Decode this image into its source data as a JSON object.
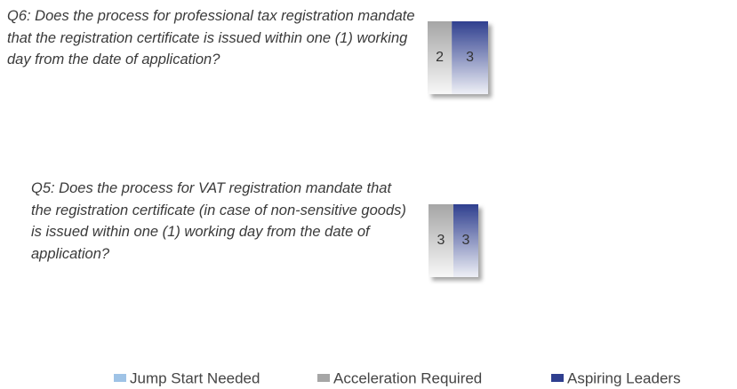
{
  "chart_data": {
    "type": "stacked-bar",
    "categories": [
      "Q6: Does the process for professional tax registration mandate that the registration certificate is issued within one (1) working day from the date of application?",
      "Q5: Does the process for VAT registration mandate that the registration certificate (in case of non-sensitive goods) is issued within one (1) working day from the date of application?"
    ],
    "series": [
      {
        "name": "Jump Start Needed",
        "color": "#9fc3e6",
        "values": [
          0,
          0
        ]
      },
      {
        "name": "Acceleration Required",
        "color": "#a6a6a6",
        "values": [
          2,
          3
        ]
      },
      {
        "name": "Aspiring Leaders",
        "color": "#2f3f8f",
        "values": [
          3,
          3
        ]
      }
    ],
    "legend": "bottom"
  }
}
